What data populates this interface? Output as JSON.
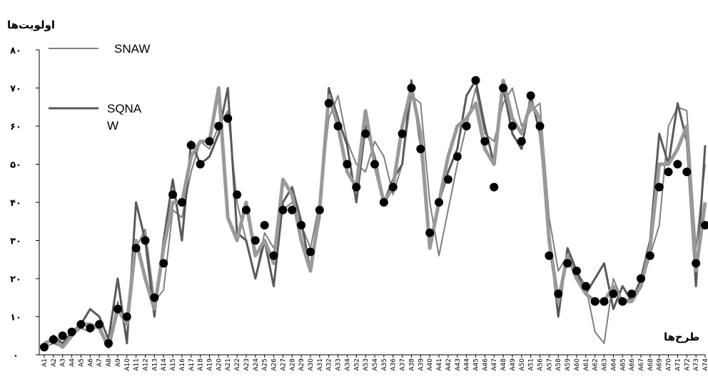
{
  "chart_data": {
    "type": "line",
    "title": "",
    "ylabel": "اولویت‌ها",
    "xlabel": "طرح‌ها",
    "ylim": [
      0,
      80
    ],
    "yticks": [
      "۰",
      "۱۰",
      "۲۰",
      "۳۰",
      "۴۰",
      "۵۰",
      "۶۰",
      "۷۰",
      "۸۰"
    ],
    "categories": [
      "A1",
      "A2",
      "A3",
      "A4",
      "A5",
      "A6",
      "A7",
      "A8",
      "A9",
      "A10",
      "A11",
      "A12",
      "A13",
      "A14",
      "A15",
      "A16",
      "A17",
      "A18",
      "A19",
      "A20",
      "A21",
      "A22",
      "A23",
      "A24",
      "A25",
      "A26",
      "A27",
      "A28",
      "A29",
      "A30",
      "A31",
      "A32",
      "A33",
      "A34",
      "A52",
      "A53",
      "A54",
      "A35",
      "A36",
      "A37",
      "A38",
      "A39",
      "A40",
      "A41",
      "A42",
      "A43",
      "A44",
      "A45",
      "A46",
      "A47",
      "A48",
      "A49",
      "A50",
      "A51",
      "A56",
      "A57",
      "A58",
      "A59",
      "A60",
      "A61",
      "A62",
      "A63",
      "A64",
      "A65",
      "A66",
      "A67",
      "A68",
      "A69",
      "A70",
      "A71",
      "A72",
      "A73",
      "A74"
    ],
    "series": [
      {
        "name": "SNAW",
        "color": "#7f7f7f",
        "width": 2,
        "values": [
          2,
          3,
          2,
          5,
          7,
          6,
          8,
          2,
          14,
          5,
          28,
          33,
          14,
          17,
          38,
          36,
          48,
          56,
          54,
          60,
          64,
          40,
          30,
          20,
          32,
          28,
          38,
          40,
          34,
          28,
          40,
          62,
          68,
          56,
          50,
          48,
          56,
          52,
          42,
          50,
          68,
          66,
          40,
          26,
          38,
          50,
          60,
          70,
          58,
          56,
          66,
          70,
          60,
          64,
          66,
          36,
          22,
          26,
          22,
          18,
          6,
          3,
          20,
          14,
          15,
          18,
          26,
          34,
          60,
          65,
          64,
          28,
          50
        ]
      },
      {
        "name": "SQNAW",
        "color": "#595959",
        "width": 3,
        "values": [
          2,
          5,
          3,
          6,
          8,
          12,
          10,
          4,
          20,
          3,
          40,
          30,
          10,
          30,
          46,
          30,
          56,
          50,
          52,
          58,
          70,
          32,
          30,
          20,
          30,
          18,
          40,
          44,
          35,
          22,
          36,
          70,
          62,
          55,
          40,
          60,
          52,
          40,
          46,
          50,
          72,
          55,
          28,
          40,
          48,
          54,
          68,
          72,
          60,
          50,
          70,
          58,
          54,
          68,
          58,
          32,
          10,
          28,
          22,
          16,
          20,
          24,
          12,
          18,
          14,
          20,
          30,
          58,
          50,
          66,
          56,
          18,
          55
        ]
      },
      {
        "name": "",
        "color": "#999999",
        "width": 5,
        "values": [
          3,
          4,
          2,
          5,
          8,
          8,
          7,
          2,
          12,
          8,
          30,
          20,
          12,
          28,
          40,
          40,
          52,
          56,
          56,
          70,
          36,
          30,
          40,
          26,
          30,
          24,
          46,
          42,
          30,
          22,
          38,
          68,
          60,
          48,
          44,
          64,
          50,
          40,
          44,
          60,
          70,
          58,
          28,
          40,
          52,
          60,
          62,
          66,
          54,
          50,
          72,
          62,
          58,
          66,
          62,
          30,
          14,
          26,
          20,
          16,
          14,
          14,
          18,
          14,
          14,
          18,
          28,
          50,
          50,
          54,
          60,
          22,
          40
        ]
      },
      {
        "name": "",
        "color": "#000000",
        "width": 0,
        "markers": true,
        "values": [
          2,
          4,
          5,
          6,
          8,
          7,
          8,
          3,
          12,
          10,
          28,
          30,
          15,
          24,
          42,
          40,
          55,
          50,
          56,
          60,
          62,
          42,
          38,
          30,
          34,
          26,
          38,
          38,
          34,
          27,
          38,
          66,
          60,
          50,
          44,
          58,
          50,
          40,
          44,
          58,
          70,
          54,
          32,
          40,
          46,
          52,
          60,
          72,
          56,
          44,
          70,
          60,
          56,
          68,
          60,
          26,
          16,
          24,
          22,
          18,
          14,
          14,
          16,
          14,
          16,
          20,
          26,
          44,
          48,
          50,
          48,
          24,
          34
        ]
      }
    ],
    "legend": "top-left",
    "grid": false
  }
}
